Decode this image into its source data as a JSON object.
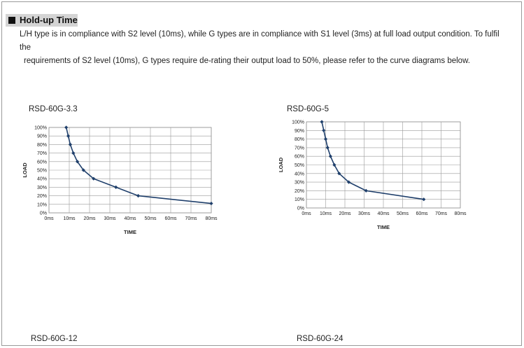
{
  "header": {
    "title": "Hold-up Time",
    "line1": "L/H type is in compliance with S2 level (10ms), while G types are in compliance with S1 level (3ms) at full load output condition. To fulfil the",
    "line2": "requirements of S2 level (10ms), G types require de-rating their output load to 50%, please refer to the curve diagrams below."
  },
  "chart_data": [
    {
      "type": "line",
      "title": "RSD-60G-3.3",
      "xlabel": "TIME",
      "ylabel": "LOAD",
      "x_ticks": [
        "0ms",
        "10ms",
        "20ms",
        "30ms",
        "40ms",
        "50ms",
        "60ms",
        "70ms",
        "80ms"
      ],
      "y_ticks": [
        "0%",
        "10%",
        "20%",
        "30%",
        "40%",
        "50%",
        "60%",
        "70%",
        "80%",
        "90%",
        "100%"
      ],
      "xlim": [
        0,
        80
      ],
      "ylim": [
        0,
        100
      ],
      "grid": true,
      "series": [
        {
          "x": [
            8.5,
            9.5,
            10.5,
            12,
            14,
            17,
            22,
            33,
            44,
            80
          ],
          "y": [
            100,
            90,
            80,
            70,
            60,
            50,
            40,
            30,
            20,
            11
          ]
        }
      ],
      "color": "#1f3f6b"
    },
    {
      "type": "line",
      "title": "RSD-60G-5",
      "xlabel": "TIME",
      "ylabel": "LOAD",
      "x_ticks": [
        "0ms",
        "10ms",
        "20ms",
        "30ms",
        "40ms",
        "50ms",
        "60ms",
        "70ms",
        "80ms"
      ],
      "y_ticks": [
        "0%",
        "10%",
        "20%",
        "30%",
        "40%",
        "50%",
        "60%",
        "70%",
        "80%",
        "90%",
        "100%"
      ],
      "xlim": [
        0,
        80
      ],
      "ylim": [
        0,
        100
      ],
      "grid": true,
      "series": [
        {
          "x": [
            8,
            9,
            10,
            11,
            12.5,
            14.5,
            17,
            22,
            31,
            61
          ],
          "y": [
            100,
            90,
            80,
            70,
            60,
            50,
            40,
            30,
            20,
            10
          ]
        }
      ],
      "color": "#1f3f6b"
    }
  ],
  "bottom_titles": [
    "RSD-60G-12",
    "RSD-60G-24"
  ]
}
